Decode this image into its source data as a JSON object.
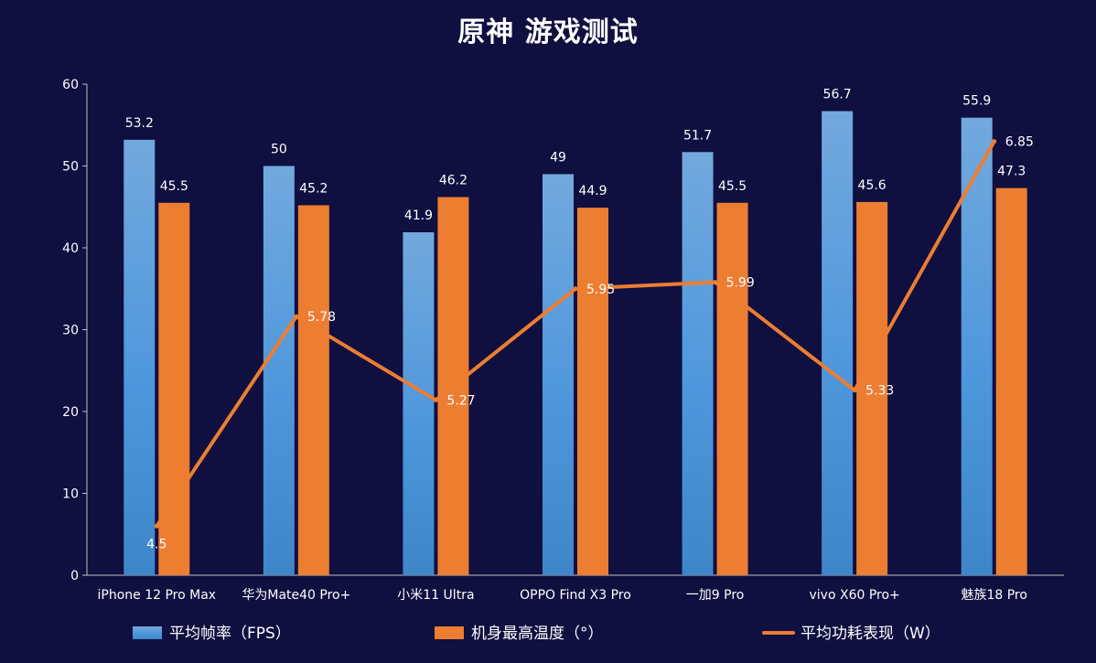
{
  "chart_data": {
    "type": "bar",
    "title": "原神  游戏测试",
    "categories": [
      "iPhone 12 Pro Max",
      "华为Mate40 Pro+",
      "小米11 Ultra",
      "OPPO Find X3 Pro",
      "一加9 Pro",
      "vivo X60 Pro+",
      "魅族18 Pro"
    ],
    "series": [
      {
        "name": "平均帧率（FPS）",
        "kind": "bar",
        "color": "#4f97dc",
        "values": [
          53.2,
          50,
          41.9,
          49,
          51.7,
          56.7,
          55.9
        ],
        "labels": [
          "53.2",
          "50",
          "41.9",
          "49",
          "51.7",
          "56.7",
          "55.9"
        ]
      },
      {
        "name": "机身最高温度（°）",
        "kind": "bar",
        "color": "#ed7d31",
        "values": [
          45.5,
          45.2,
          46.2,
          44.9,
          45.5,
          45.6,
          47.3
        ],
        "labels": [
          "45.5",
          "45.2",
          "46.2",
          "44.9",
          "45.5",
          "45.6",
          "47.3"
        ]
      },
      {
        "name": "平均功耗表现（W）",
        "kind": "line",
        "color": "#ed7d31",
        "values": [
          4.5,
          5.78,
          5.27,
          5.95,
          5.99,
          5.33,
          6.85
        ],
        "labels": [
          "4.5",
          "5.78",
          "5.27",
          "5.95",
          "5.99",
          "5.33",
          "6.85"
        ]
      }
    ],
    "ylim": [
      0,
      60
    ],
    "yticks": [
      0,
      10,
      20,
      30,
      40,
      50,
      60
    ],
    "grid": false,
    "legend": "bottom"
  }
}
